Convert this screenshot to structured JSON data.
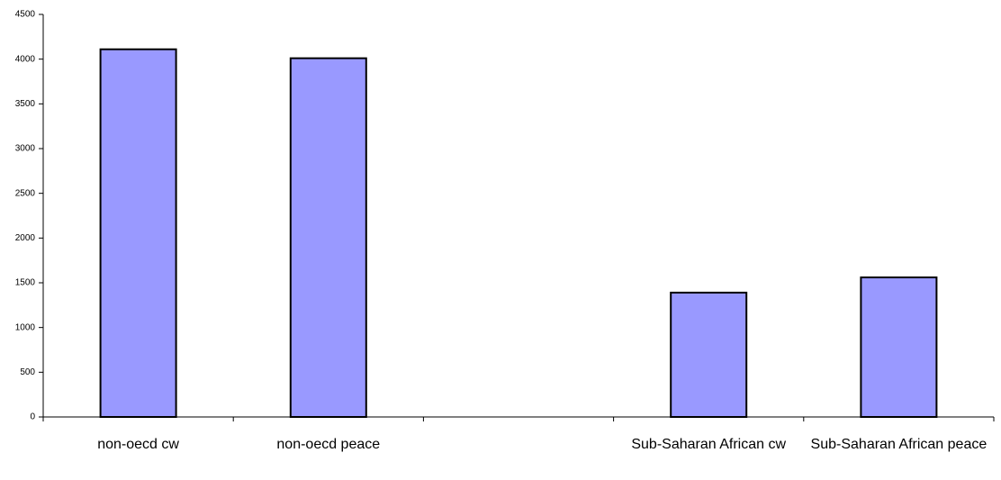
{
  "chart_data": {
    "type": "bar",
    "categories": [
      "non-oecd cw",
      "non-oecd peace",
      null,
      "Sub-Saharan African cw",
      "Sub-Saharan African peace"
    ],
    "values": [
      4110,
      4010,
      null,
      1390,
      1560
    ],
    "color": "#9999ff",
    "ylim": [
      0,
      4500
    ],
    "yticks": [
      0,
      500,
      1000,
      1500,
      2000,
      2500,
      3000,
      3500,
      4000,
      4500
    ],
    "grid": false
  }
}
